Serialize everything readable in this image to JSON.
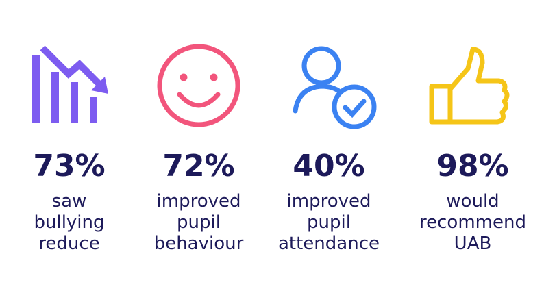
{
  "items": [
    {
      "stat": "73%",
      "lines": [
        "saw",
        "bullying",
        "reduce"
      ]
    },
    {
      "stat": "72%",
      "lines": [
        "improved",
        "pupil",
        "behaviour"
      ]
    },
    {
      "stat": "40%",
      "lines": [
        "improved",
        "pupil",
        "attendance"
      ]
    },
    {
      "stat": "98%",
      "lines": [
        "would",
        "recommend",
        "UAB"
      ]
    }
  ]
}
